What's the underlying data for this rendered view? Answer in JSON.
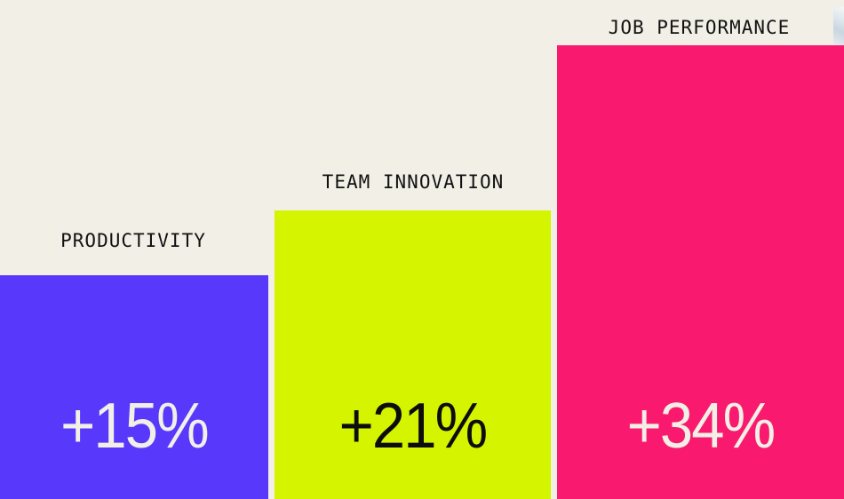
{
  "page": {
    "background_color": "#f2efe7",
    "text_color": "#121212"
  },
  "chart_data": {
    "type": "bar",
    "orientation": "vertical",
    "title": "",
    "xlabel": "",
    "ylabel": "",
    "axes_visible": false,
    "grid": false,
    "legend": false,
    "categories": [
      "PRODUCTIVITY",
      "TEAM INNOVATION",
      "JOB PERFORMANCE"
    ],
    "values": [
      15,
      21,
      34
    ],
    "value_labels": [
      "+15%",
      "+21%",
      "+34%"
    ],
    "bars": [
      {
        "label": "PRODUCTIVITY",
        "value": 15,
        "value_label": "+15%",
        "color": "#5839fb",
        "value_label_color": "#f2efe6"
      },
      {
        "label": "TEAM INNOVATION",
        "value": 21,
        "value_label": "+21%",
        "color": "#d4f400",
        "value_label_color": "#0d0d0d"
      },
      {
        "label": "JOB PERFORMANCE",
        "value": 34,
        "value_label": "+34%",
        "color": "#f9196e",
        "value_label_color": "#f2efe6"
      }
    ],
    "category_label_color": "#121212"
  },
  "decor": {
    "photo_corner": {
      "position": "top-right",
      "colors": [
        "#f4f6f7",
        "#c9d5df"
      ]
    }
  }
}
